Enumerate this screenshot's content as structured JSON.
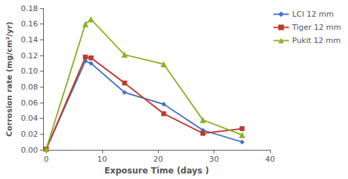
{
  "chart_data": {
    "type": "line",
    "xlabel": "Exposure Time (days )",
    "ylabel": "Corrosion rate (mg/cm²/yr)",
    "x": [
      0,
      7,
      8,
      14,
      21,
      28,
      35
    ],
    "series": [
      {
        "name": "LCI 12 mm",
        "color": "#4472C4",
        "marker": "diamond",
        "values": [
          0.001,
          0.113,
          0.11,
          0.073,
          0.058,
          0.025,
          0.01
        ]
      },
      {
        "name": "Tiger 12 mm",
        "color": "#C0392B",
        "marker": "square",
        "values": [
          0.001,
          0.118,
          0.117,
          0.085,
          0.046,
          0.021,
          0.027
        ]
      },
      {
        "name": "Pukit 12 mm",
        "color": "#8DB225",
        "marker": "triangle",
        "values": [
          0.001,
          0.16,
          0.166,
          0.121,
          0.109,
          0.038,
          0.019
        ]
      }
    ],
    "xlim": [
      -0.5,
      40
    ],
    "ylim": [
      0,
      0.18
    ],
    "xticks": [
      0,
      10,
      20,
      30,
      40
    ],
    "yticks": [
      {
        "value": 0,
        "label": "0.00"
      },
      {
        "value": 0.02,
        "label": "0.02"
      },
      {
        "value": 0.04,
        "label": "0.04"
      },
      {
        "value": 0.06,
        "label": "0.06"
      },
      {
        "value": 0.08,
        "label": "0.08"
      },
      {
        "value": 0.1,
        "label": "0.10"
      },
      {
        "value": 0.12,
        "label": "0.12"
      },
      {
        "value": 0.14,
        "label": "0.14"
      },
      {
        "value": 0.16,
        "label": "0.16"
      },
      {
        "value": 0.18,
        "label": "0.18"
      }
    ],
    "grid": false,
    "legend": "upper right"
  }
}
